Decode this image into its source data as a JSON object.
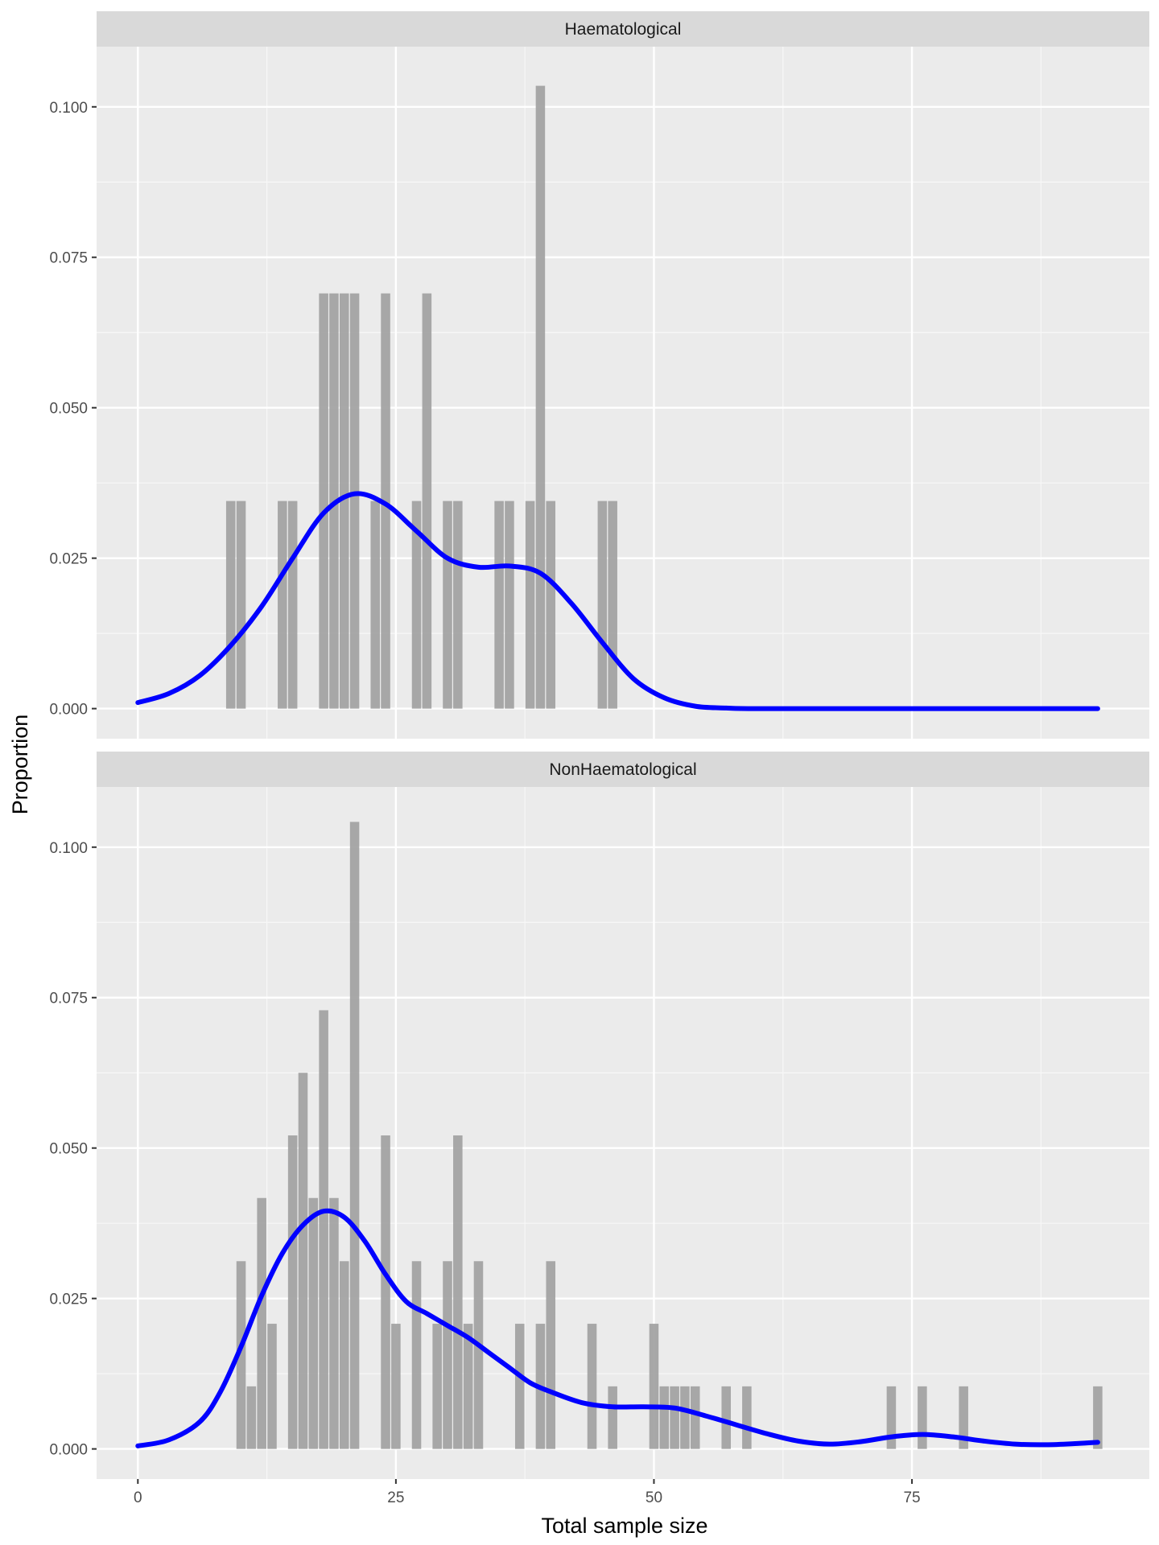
{
  "chart_data": {
    "type": "bar",
    "xlabel": "Total sample size",
    "ylabel": "Proportion",
    "xlim": [
      -4,
      98
    ],
    "ylim": [
      -0.005,
      0.11
    ],
    "x_ticks": [
      0,
      25,
      50,
      75
    ],
    "x_tick_labels": [
      "0",
      "25",
      "50",
      "75"
    ],
    "y_ticks": [
      0.0,
      0.025,
      0.05,
      0.075,
      0.1
    ],
    "y_tick_labels": [
      "0.000",
      "0.025",
      "0.050",
      "0.075",
      "0.100"
    ],
    "grid": true,
    "bar_color": "#a3a3a3",
    "line_color": "#0000ff",
    "panel_background": "#ebebeb",
    "strip_background": "#d9d9d9",
    "panels": [
      {
        "strip_label": "Haematological",
        "bars": [
          {
            "x": 9,
            "y": 0.0345
          },
          {
            "x": 10,
            "y": 0.0345
          },
          {
            "x": 14,
            "y": 0.0345
          },
          {
            "x": 15,
            "y": 0.0345
          },
          {
            "x": 18,
            "y": 0.069
          },
          {
            "x": 19,
            "y": 0.069
          },
          {
            "x": 20,
            "y": 0.069
          },
          {
            "x": 21,
            "y": 0.069
          },
          {
            "x": 23,
            "y": 0.0345
          },
          {
            "x": 24,
            "y": 0.069
          },
          {
            "x": 27,
            "y": 0.0345
          },
          {
            "x": 28,
            "y": 0.069
          },
          {
            "x": 30,
            "y": 0.0345
          },
          {
            "x": 31,
            "y": 0.0345
          },
          {
            "x": 35,
            "y": 0.0345
          },
          {
            "x": 36,
            "y": 0.0345
          },
          {
            "x": 38,
            "y": 0.0345
          },
          {
            "x": 39,
            "y": 0.1035
          },
          {
            "x": 40,
            "y": 0.0345
          },
          {
            "x": 45,
            "y": 0.0345
          },
          {
            "x": 46,
            "y": 0.0345
          }
        ],
        "density": [
          [
            0,
            0.001
          ],
          [
            3,
            0.0025
          ],
          [
            6,
            0.0055
          ],
          [
            9,
            0.0105
          ],
          [
            12,
            0.017
          ],
          [
            15,
            0.025
          ],
          [
            18,
            0.0325
          ],
          [
            21,
            0.0357
          ],
          [
            24,
            0.034
          ],
          [
            27,
            0.0295
          ],
          [
            30,
            0.025
          ],
          [
            33,
            0.0235
          ],
          [
            36,
            0.0237
          ],
          [
            39,
            0.0225
          ],
          [
            42,
            0.0175
          ],
          [
            45,
            0.011
          ],
          [
            48,
            0.005
          ],
          [
            51,
            0.0018
          ],
          [
            54,
            0.0004
          ],
          [
            57,
            0.0001
          ],
          [
            60,
            0.0
          ],
          [
            70,
            0.0
          ],
          [
            80,
            0.0
          ],
          [
            93,
            0.0
          ]
        ]
      },
      {
        "strip_label": "NonHaematological",
        "bars": [
          {
            "x": 10,
            "y": 0.0312
          },
          {
            "x": 11,
            "y": 0.0104
          },
          {
            "x": 12,
            "y": 0.0417
          },
          {
            "x": 13,
            "y": 0.0208
          },
          {
            "x": 15,
            "y": 0.0521
          },
          {
            "x": 16,
            "y": 0.0625
          },
          {
            "x": 17,
            "y": 0.0417
          },
          {
            "x": 18,
            "y": 0.0729
          },
          {
            "x": 19,
            "y": 0.0417
          },
          {
            "x": 20,
            "y": 0.0312
          },
          {
            "x": 21,
            "y": 0.1042
          },
          {
            "x": 24,
            "y": 0.0521
          },
          {
            "x": 25,
            "y": 0.0208
          },
          {
            "x": 27,
            "y": 0.0312
          },
          {
            "x": 29,
            "y": 0.0208
          },
          {
            "x": 30,
            "y": 0.0312
          },
          {
            "x": 31,
            "y": 0.0521
          },
          {
            "x": 32,
            "y": 0.0208
          },
          {
            "x": 33,
            "y": 0.0312
          },
          {
            "x": 37,
            "y": 0.0208
          },
          {
            "x": 39,
            "y": 0.0208
          },
          {
            "x": 40,
            "y": 0.0312
          },
          {
            "x": 44,
            "y": 0.0208
          },
          {
            "x": 46,
            "y": 0.0104
          },
          {
            "x": 50,
            "y": 0.0208
          },
          {
            "x": 51,
            "y": 0.0104
          },
          {
            "x": 52,
            "y": 0.0104
          },
          {
            "x": 53,
            "y": 0.0104
          },
          {
            "x": 54,
            "y": 0.0104
          },
          {
            "x": 57,
            "y": 0.0104
          },
          {
            "x": 59,
            "y": 0.0104
          },
          {
            "x": 73,
            "y": 0.0104
          },
          {
            "x": 76,
            "y": 0.0104
          },
          {
            "x": 80,
            "y": 0.0104
          },
          {
            "x": 93,
            "y": 0.0104
          }
        ],
        "density": [
          [
            0,
            0.0005
          ],
          [
            3,
            0.0015
          ],
          [
            6,
            0.0045
          ],
          [
            8,
            0.0095
          ],
          [
            10,
            0.017
          ],
          [
            12,
            0.0255
          ],
          [
            14,
            0.0325
          ],
          [
            16,
            0.0372
          ],
          [
            18,
            0.0395
          ],
          [
            20,
            0.0385
          ],
          [
            22,
            0.0345
          ],
          [
            24,
            0.029
          ],
          [
            26,
            0.0245
          ],
          [
            28,
            0.0225
          ],
          [
            30,
            0.0205
          ],
          [
            32,
            0.0185
          ],
          [
            34,
            0.016
          ],
          [
            36,
            0.0135
          ],
          [
            38,
            0.011
          ],
          [
            40,
            0.0095
          ],
          [
            43,
            0.0077
          ],
          [
            46,
            0.007
          ],
          [
            49,
            0.007
          ],
          [
            52,
            0.0068
          ],
          [
            55,
            0.0055
          ],
          [
            58,
            0.004
          ],
          [
            61,
            0.0025
          ],
          [
            64,
            0.0013
          ],
          [
            67,
            0.0008
          ],
          [
            70,
            0.0012
          ],
          [
            73,
            0.002
          ],
          [
            76,
            0.0024
          ],
          [
            79,
            0.002
          ],
          [
            82,
            0.0013
          ],
          [
            85,
            0.0008
          ],
          [
            88,
            0.0007
          ],
          [
            91,
            0.0009
          ],
          [
            93,
            0.0011
          ]
        ]
      }
    ]
  }
}
